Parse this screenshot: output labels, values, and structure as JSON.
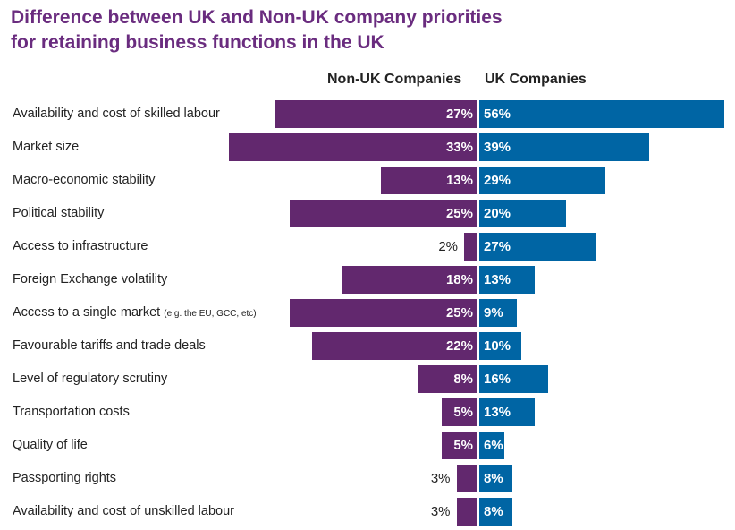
{
  "chart_data": {
    "type": "bar",
    "orientation": "horizontal-diverging",
    "title": [
      "Difference between UK and Non-UK company priorities",
      "for retaining business functions in the UK"
    ],
    "categories": [
      {
        "label": "Availability and cost of skilled labour",
        "note": ""
      },
      {
        "label": "Market size",
        "note": ""
      },
      {
        "label": "Macro-economic stability",
        "note": ""
      },
      {
        "label": "Political stability",
        "note": ""
      },
      {
        "label": "Access to infrastructure",
        "note": ""
      },
      {
        "label": "Foreign Exchange volatility",
        "note": ""
      },
      {
        "label": "Access to a single market",
        "note": "(e.g. the EU, GCC, etc)"
      },
      {
        "label": "Favourable tariffs and trade deals",
        "note": ""
      },
      {
        "label": "Level of regulatory scrutiny",
        "note": ""
      },
      {
        "label": "Transportation costs",
        "note": ""
      },
      {
        "label": "Quality of life",
        "note": ""
      },
      {
        "label": "Passporting rights",
        "note": ""
      },
      {
        "label": "Availability and cost of unskilled labour",
        "note": ""
      }
    ],
    "series": [
      {
        "name": "Non-UK Companies",
        "color": "#62286e",
        "values": [
          27,
          33,
          13,
          25,
          2,
          18,
          25,
          22,
          8,
          5,
          5,
          3,
          3
        ]
      },
      {
        "name": "UK Companies",
        "color": "#0065a4",
        "values": [
          56,
          39,
          29,
          20,
          27,
          13,
          9,
          10,
          16,
          13,
          6,
          8,
          8
        ]
      }
    ],
    "value_suffix": "%",
    "grid": false
  }
}
